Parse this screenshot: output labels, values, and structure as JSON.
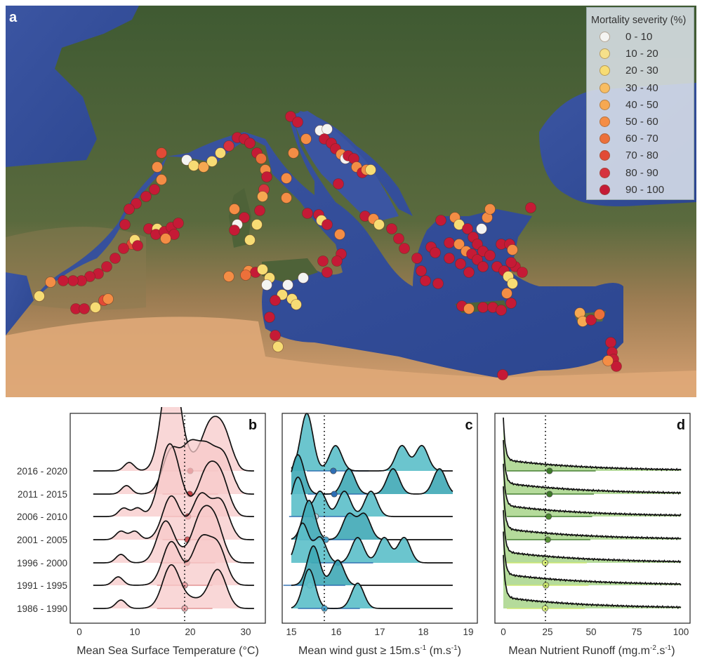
{
  "figure": {
    "panel_a_label": "a",
    "panel_b_label": "b",
    "panel_c_label": "c",
    "panel_d_label": "d"
  },
  "legend": {
    "title": "Mortality severity (%)",
    "items": [
      {
        "label": "0 - 10",
        "color": "#f4f4f2"
      },
      {
        "label": "10 - 20",
        "color": "#f6e08a"
      },
      {
        "label": "20 - 30",
        "color": "#f7dc74"
      },
      {
        "label": "30 - 40",
        "color": "#f7bd62"
      },
      {
        "label": "40 - 50",
        "color": "#f6a851"
      },
      {
        "label": "50 - 60",
        "color": "#f48d45"
      },
      {
        "label": "60 - 70",
        "color": "#ec703a"
      },
      {
        "label": "70 - 80",
        "color": "#e24a36"
      },
      {
        "label": "80 - 90",
        "color": "#d6323e"
      },
      {
        "label": "90 - 100",
        "color": "#c51a36"
      }
    ]
  },
  "chart_data": [
    {
      "type": "map",
      "panel": "a",
      "title": "Mediterranean mass-mortality sites",
      "legend_title": "Mortality severity (%)",
      "legend_entries": [
        "0 - 10",
        "10 - 20",
        "20 - 30",
        "30 - 40",
        "40 - 50",
        "50 - 60",
        "60 - 70",
        "70 - 80",
        "80 - 90",
        "90 - 100"
      ]
    },
    {
      "type": "ridgeline",
      "panel": "b",
      "xlabel": "Mean Sea Surface Temperature (°C)",
      "xticks": [
        0,
        10,
        20,
        30
      ],
      "xlim": [
        -1.5,
        33
      ],
      "reference_line": 19.2,
      "fill_color": "#f7c9c9",
      "categories": [
        "2016 - 2020",
        "2011 - 2015",
        "2006 - 2010",
        "2001 - 2005",
        "1996 - 2000",
        "1991 - 1995",
        "1986 - 1990"
      ],
      "means": [
        20.0,
        19.9,
        19.6,
        19.5,
        19.4,
        19.0,
        19.0
      ],
      "mean_colors": [
        "#b8323a",
        "#c03a40",
        "#cc4a50",
        "#d25a5c",
        "#d66466",
        "#e8a0a4",
        "#eca8ac"
      ],
      "intervals": [
        [
          15.0,
          25.0
        ],
        [
          15.0,
          25.0
        ],
        [
          15.0,
          24.5
        ],
        [
          15.0,
          24.5
        ],
        [
          14.5,
          24.5
        ],
        [
          14.0,
          24.0
        ],
        [
          14.0,
          24.0
        ]
      ],
      "peaks": [
        [
          9,
          16,
          17,
          23.5,
          26
        ],
        [
          8.5,
          16.5,
          20,
          23,
          26
        ],
        [
          8,
          10.5,
          15.5,
          17,
          23,
          25.5
        ],
        [
          7.5,
          10,
          16.5,
          22,
          25.5
        ],
        [
          7.5,
          15.5,
          22,
          24.5
        ],
        [
          7,
          16.5,
          22,
          25
        ],
        [
          7.5,
          16.5,
          25
        ]
      ]
    },
    {
      "type": "ridgeline",
      "panel": "c",
      "xlabel": "Mean wind gust ≥ 15m.s-1 (m.s-1)",
      "xticks": [
        15,
        16,
        17,
        18,
        19
      ],
      "xlim": [
        14.8,
        19.2
      ],
      "reference_line": 15.75,
      "fill_color": "#5bbfc9",
      "categories": [
        "2016 - 2020",
        "2011 - 2015",
        "2006 - 2010",
        "2001 - 2005",
        "1996 - 2000",
        "1991 - 1995",
        "1986 - 1990"
      ],
      "means": [
        15.95,
        15.97,
        15.55,
        15.78,
        16.05,
        15.42,
        15.75
      ],
      "mean_colors": [
        "#2f6fb5",
        "#2f6fb5",
        "#b9d0dc",
        "#4aa0c8",
        "#2a57b0",
        "#c6d7de",
        "#4aa0c8"
      ],
      "peaks": [
        [
          15.35,
          16.0,
          17.5,
          17.95
        ],
        [
          15.15,
          16.3,
          17.3,
          18.35
        ],
        [
          15.15,
          15.65,
          16.2,
          16.8
        ],
        [
          15.4,
          16.3,
          16.65
        ],
        [
          15.25,
          15.65,
          16.5,
          17.1,
          17.55
        ],
        [
          15.5,
          16.05
        ],
        [
          15.4,
          16.5
        ]
      ]
    },
    {
      "type": "ridgeline",
      "panel": "d",
      "xlabel": "Mean Nutrient Runoff (mg.m-2.s-1)",
      "xticks": [
        0,
        25,
        50,
        75,
        100
      ],
      "xlim": [
        -4,
        105
      ],
      "reference_line": 23.5,
      "fill_color": "#a8d58a",
      "categories": [
        "2016 - 2020",
        "2011 - 2015",
        "2006 - 2010",
        "2001 - 2005",
        "1996 - 2000",
        "1991 - 1995",
        "1986 - 1990"
      ],
      "means": [
        26,
        26,
        25.5,
        25,
        23.5,
        24,
        23.5
      ],
      "mean_colors": [
        "#3e7a2a",
        "#3e7a2a",
        "#4a862e",
        "#5a9238",
        "#d9ef7a",
        "#c4e06a",
        "#d9ef7a"
      ],
      "interval_upper": [
        52,
        51,
        50,
        49,
        47,
        48,
        46
      ]
    }
  ],
  "panels": {
    "b": {
      "xlabel": "Mean Sea Surface Temperature (°C)",
      "xticks": [
        "0",
        "10",
        "20",
        "30"
      ],
      "ylabels": [
        "2016 - 2020",
        "2011 - 2015",
        "2006 - 2010",
        "2001 - 2005",
        "1996 - 2000",
        "1991 - 1995",
        "1986 - 1990"
      ]
    },
    "c": {
      "xlabel_main": "Mean wind gust ≥ 15m.s",
      "xlabel_sup1": "-1",
      "xlabel_mid": " (m.s",
      "xlabel_sup2": "-1",
      "xlabel_end": ")",
      "xticks": [
        "15",
        "16",
        "17",
        "18",
        "19"
      ]
    },
    "d": {
      "xlabel_main": "Mean Nutrient Runoff (mg.m",
      "xlabel_sup1": "-2",
      "xlabel_mid": ".s",
      "xlabel_sup2": "-1",
      "xlabel_end": ")",
      "xticks": [
        "0",
        "25",
        "50",
        "75",
        "100"
      ]
    }
  }
}
